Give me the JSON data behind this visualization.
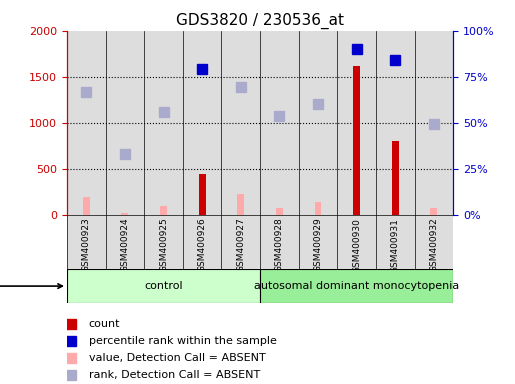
{
  "title": "GDS3820 / 230536_at",
  "samples": [
    "GSM400923",
    "GSM400924",
    "GSM400925",
    "GSM400926",
    "GSM400927",
    "GSM400928",
    "GSM400929",
    "GSM400930",
    "GSM400931",
    "GSM400932"
  ],
  "control_count": 5,
  "groups": [
    "control",
    "autosomal dominant monocytopenia"
  ],
  "bar_values": [
    0,
    0,
    0,
    450,
    0,
    0,
    0,
    1620,
    800,
    0
  ],
  "absent_bar_values": [
    200,
    20,
    100,
    120,
    230,
    80,
    140,
    0,
    0,
    80
  ],
  "rank_absent": [
    1340,
    660,
    1120,
    null,
    1390,
    1070,
    1210,
    null,
    null,
    990
  ],
  "rank_present": [
    null,
    null,
    null,
    1580,
    null,
    null,
    null,
    1800,
    1680,
    null
  ],
  "ylim_left": [
    0,
    2000
  ],
  "ylim_right": [
    0,
    100
  ],
  "yticks_left": [
    0,
    500,
    1000,
    1500,
    2000
  ],
  "yticks_right": [
    0,
    25,
    50,
    75,
    100
  ],
  "ytick_labels_right": [
    "0%",
    "25%",
    "50%",
    "75%",
    "100%"
  ],
  "bar_color": "#cc0000",
  "absent_bar_color": "#ffaaaa",
  "rank_absent_color": "#aaaacc",
  "rank_present_color": "#0000cc",
  "control_bg": "#ccffcc",
  "disease_bg": "#99ee99",
  "group_label_color": "#333333",
  "dotted_line_color": "#000000",
  "axis_label_color_left": "#cc0000",
  "axis_label_color_right": "#0000cc"
}
